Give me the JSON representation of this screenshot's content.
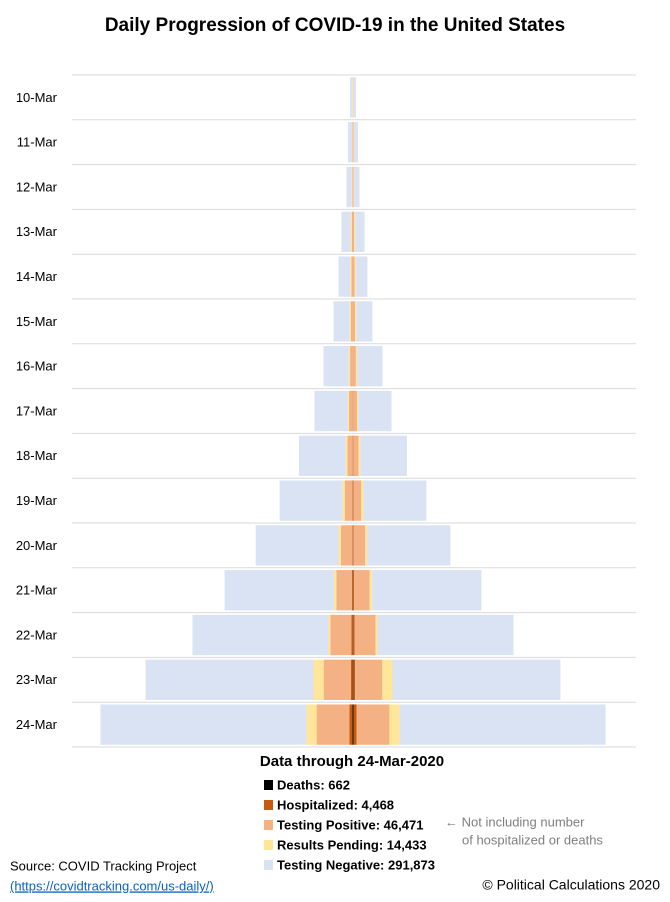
{
  "chart_data": {
    "type": "centered-stacked-bar",
    "title": "Daily Progression of COVID-19  in the United States",
    "subtitle": "Data through 24-Mar-2020",
    "categories": [
      "10-Mar",
      "11-Mar",
      "12-Mar",
      "13-Mar",
      "14-Mar",
      "15-Mar",
      "16-Mar",
      "17-Mar",
      "18-Mar",
      "19-Mar",
      "20-Mar",
      "21-Mar",
      "22-Mar",
      "23-Mar",
      "24-Mar"
    ],
    "series": [
      {
        "name": "Deaths: 662",
        "color": "#000000",
        "values": [
          4,
          10,
          15,
          25,
          40,
          60,
          80,
          100,
          130,
          170,
          220,
          300,
          400,
          500,
          662
        ]
      },
      {
        "name": "Hospitalized: 4,468",
        "color": "#c55a11",
        "values": [
          0,
          0,
          0,
          0,
          0,
          0,
          0,
          300,
          400,
          600,
          800,
          1400,
          2000,
          2600,
          4468
        ]
      },
      {
        "name": "Testing Positive: 46,471",
        "color": "#f4b183",
        "values": [
          470,
          700,
          1000,
          1700,
          2300,
          3000,
          4000,
          5200,
          7200,
          11000,
          16000,
          22000,
          29500,
          38500,
          46471
        ]
      },
      {
        "name": "Results Pending: 14,433",
        "color": "#ffe699",
        "values": [
          560,
          560,
          700,
          1600,
          1500,
          1700,
          1700,
          1700,
          2500,
          3000,
          3300,
          3500,
          2800,
          14400,
          14433
        ]
      },
      {
        "name": "Testing Negative: 291,873",
        "color": "#dae3f3",
        "values": [
          3170,
          5730,
          7485,
          12975,
          16660,
          22840,
          36020,
          47300,
          66270,
          89230,
          117680,
          154800,
          192800,
          238000,
          291873
        ]
      }
    ],
    "annotation": [
      "←  Not including number",
      "of hospitalized or deaths"
    ],
    "source": [
      "Source:  COVID Tracking Project",
      "(https://covidtracking.com/us-daily/)"
    ],
    "credit": "© Political Calculations 2020",
    "grid": true
  }
}
